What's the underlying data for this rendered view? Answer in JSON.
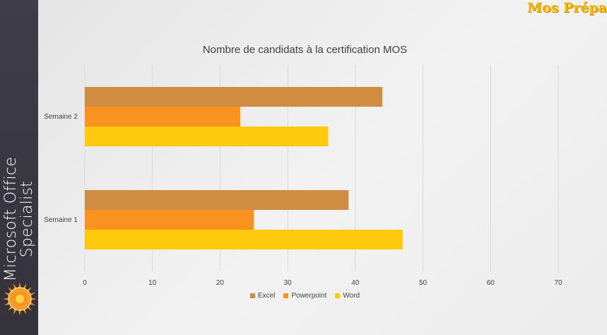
{
  "sidebar": {
    "title_line1": "Microsoft Office",
    "title_line2": "Specialist",
    "badge_text": "Microsoft Office Specialist"
  },
  "brand": "Mos Prépa",
  "colors": {
    "excel": "#d08c40",
    "powerpoint": "#f7931e",
    "word": "#ffc90e",
    "grid": "#d9d9d9",
    "text": "#404040",
    "badge": "#f7941d"
  },
  "chart_data": {
    "type": "bar",
    "orientation": "horizontal",
    "title": "Nombre de candidats à la certification MOS",
    "categories": [
      "Semaine 1",
      "Semaine 2"
    ],
    "series": [
      {
        "name": "Excel",
        "values": [
          39,
          44
        ]
      },
      {
        "name": "Powerpoint",
        "values": [
          25,
          23
        ]
      },
      {
        "name": "Word",
        "values": [
          47,
          36
        ]
      }
    ],
    "xlim": [
      0,
      70
    ],
    "xticks": [
      0,
      10,
      20,
      30,
      40,
      50,
      60,
      70
    ],
    "grid": true,
    "legend_position": "bottom"
  }
}
